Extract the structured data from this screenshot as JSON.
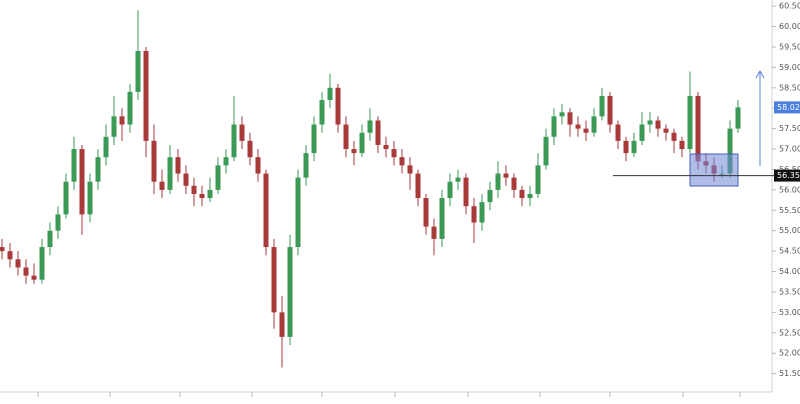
{
  "chart_data": {
    "type": "candlestick",
    "up_color": "#3c9a57",
    "down_color": "#a93a3a",
    "ylim": [
      51.05,
      60.65
    ],
    "yticks": [
      {
        "value": 51.5,
        "label": "51.50"
      },
      {
        "value": 52,
        "label": "52.00"
      },
      {
        "value": 52.5,
        "label": "52.50"
      },
      {
        "value": 53,
        "label": "53.00"
      },
      {
        "value": 53.5,
        "label": "53.50"
      },
      {
        "value": 54,
        "label": "54.00"
      },
      {
        "value": 54.5,
        "label": "54.50"
      },
      {
        "value": 55,
        "label": "55.00"
      },
      {
        "value": 55.5,
        "label": "55.50"
      },
      {
        "value": 56,
        "label": "56.00"
      },
      {
        "value": 56.5,
        "label": "56.50"
      },
      {
        "value": 57,
        "label": "57.00"
      },
      {
        "value": 57.5,
        "label": "57.50"
      },
      {
        "value": 58,
        "label": "58.00"
      },
      {
        "value": 58.5,
        "label": "58.50"
      },
      {
        "value": 59,
        "label": "59.00"
      },
      {
        "value": 59.5,
        "label": "59.50"
      },
      {
        "value": 60,
        "label": "60.00"
      },
      {
        "value": 60.5,
        "label": "60.50"
      }
    ],
    "last_price": 58.02,
    "horizontal_line": 56.35,
    "ohlc": [
      [
        54.6,
        54.8,
        54.3,
        54.5
      ],
      [
        54.5,
        54.7,
        54.1,
        54.3
      ],
      [
        54.3,
        54.5,
        53.9,
        54.1
      ],
      [
        54.1,
        54.3,
        53.7,
        53.9
      ],
      [
        53.9,
        54.2,
        53.7,
        53.8
      ],
      [
        53.8,
        54.8,
        53.7,
        54.6
      ],
      [
        54.6,
        55.2,
        54.4,
        55.0
      ],
      [
        55.0,
        55.6,
        54.8,
        55.4
      ],
      [
        55.4,
        56.4,
        55.3,
        56.2
      ],
      [
        56.2,
        57.3,
        56.0,
        57.0
      ],
      [
        57.0,
        57.1,
        54.9,
        55.4
      ],
      [
        55.4,
        56.4,
        55.2,
        56.2
      ],
      [
        56.2,
        57.0,
        56.0,
        56.8
      ],
      [
        56.8,
        57.6,
        56.6,
        57.3
      ],
      [
        57.3,
        58.3,
        57.1,
        57.8
      ],
      [
        57.8,
        58.0,
        57.2,
        57.6
      ],
      [
        57.6,
        58.6,
        57.4,
        58.4
      ],
      [
        58.4,
        60.4,
        58.2,
        59.4
      ],
      [
        59.4,
        59.5,
        56.8,
        57.2
      ],
      [
        57.2,
        57.6,
        55.9,
        56.2
      ],
      [
        56.2,
        56.5,
        55.8,
        56.0
      ],
      [
        56.0,
        57.1,
        55.9,
        56.8
      ],
      [
        56.8,
        57.0,
        56.2,
        56.4
      ],
      [
        56.4,
        56.6,
        55.9,
        56.1
      ],
      [
        56.1,
        56.3,
        55.6,
        55.9
      ],
      [
        55.9,
        56.1,
        55.6,
        55.8
      ],
      [
        55.8,
        56.3,
        55.7,
        56.0
      ],
      [
        56.0,
        56.8,
        55.9,
        56.6
      ],
      [
        56.6,
        57.0,
        56.4,
        56.8
      ],
      [
        56.8,
        58.3,
        56.7,
        57.6
      ],
      [
        57.6,
        57.8,
        57.0,
        57.2
      ],
      [
        57.2,
        57.4,
        56.6,
        56.8
      ],
      [
        56.8,
        57.0,
        56.2,
        56.4
      ],
      [
        56.4,
        56.5,
        54.4,
        54.6
      ],
      [
        54.6,
        54.8,
        52.6,
        53.0
      ],
      [
        53.0,
        53.4,
        51.65,
        52.4
      ],
      [
        52.4,
        54.9,
        52.2,
        54.6
      ],
      [
        54.6,
        56.5,
        54.4,
        56.3
      ],
      [
        56.3,
        57.1,
        56.1,
        56.9
      ],
      [
        56.9,
        57.8,
        56.7,
        57.6
      ],
      [
        57.6,
        58.4,
        57.4,
        58.2
      ],
      [
        58.2,
        58.85,
        58.0,
        58.5
      ],
      [
        58.5,
        58.6,
        57.4,
        57.6
      ],
      [
        57.6,
        57.8,
        56.8,
        57.0
      ],
      [
        57.0,
        57.2,
        56.6,
        56.9
      ],
      [
        56.9,
        57.6,
        56.8,
        57.4
      ],
      [
        57.4,
        58.0,
        57.2,
        57.7
      ],
      [
        57.7,
        57.8,
        56.9,
        57.1
      ],
      [
        57.1,
        57.3,
        56.8,
        57.0
      ],
      [
        57.0,
        57.2,
        56.6,
        56.8
      ],
      [
        56.8,
        57.0,
        56.4,
        56.6
      ],
      [
        56.6,
        56.8,
        56.0,
        56.4
      ],
      [
        56.4,
        56.5,
        55.6,
        55.8
      ],
      [
        55.8,
        55.9,
        54.9,
        55.1
      ],
      [
        55.1,
        55.3,
        54.4,
        54.8
      ],
      [
        54.8,
        56.0,
        54.6,
        55.8
      ],
      [
        55.8,
        56.4,
        55.6,
        56.2
      ],
      [
        56.2,
        56.5,
        56.0,
        56.3
      ],
      [
        56.3,
        56.4,
        55.4,
        55.6
      ],
      [
        55.6,
        55.8,
        54.7,
        55.2
      ],
      [
        55.2,
        55.9,
        55.0,
        55.7
      ],
      [
        55.7,
        56.2,
        55.5,
        56.0
      ],
      [
        56.0,
        56.7,
        55.8,
        56.4
      ],
      [
        56.4,
        56.6,
        56.1,
        56.3
      ],
      [
        56.3,
        56.4,
        55.8,
        56.0
      ],
      [
        56.0,
        56.1,
        55.6,
        55.8
      ],
      [
        55.8,
        56.1,
        55.6,
        55.9
      ],
      [
        55.9,
        56.9,
        55.8,
        56.6
      ],
      [
        56.6,
        57.5,
        56.5,
        57.3
      ],
      [
        57.3,
        58.0,
        57.1,
        57.8
      ],
      [
        57.8,
        58.1,
        57.6,
        57.9
      ],
      [
        57.9,
        58.0,
        57.3,
        57.6
      ],
      [
        57.6,
        57.8,
        57.3,
        57.5
      ],
      [
        57.5,
        57.7,
        57.2,
        57.4
      ],
      [
        57.4,
        58.0,
        57.3,
        57.8
      ],
      [
        57.8,
        58.5,
        57.7,
        58.3
      ],
      [
        58.3,
        58.4,
        57.4,
        57.6
      ],
      [
        57.6,
        57.7,
        57.0,
        57.2
      ],
      [
        57.2,
        57.3,
        56.7,
        56.9
      ],
      [
        56.9,
        57.4,
        56.8,
        57.2
      ],
      [
        57.2,
        57.9,
        57.1,
        57.6
      ],
      [
        57.6,
        57.9,
        57.4,
        57.7
      ],
      [
        57.7,
        57.8,
        57.3,
        57.5
      ],
      [
        57.5,
        57.6,
        57.2,
        57.4
      ],
      [
        57.4,
        57.5,
        56.9,
        57.2
      ],
      [
        57.2,
        57.3,
        56.8,
        57.0
      ],
      [
        57.0,
        58.9,
        56.9,
        58.3
      ],
      [
        58.3,
        58.4,
        56.5,
        56.7
      ],
      [
        56.7,
        56.9,
        56.4,
        56.6
      ],
      [
        56.6,
        56.8,
        56.2,
        56.4
      ],
      [
        56.4,
        56.6,
        56.3,
        56.4
      ],
      [
        56.4,
        57.7,
        56.3,
        57.5
      ],
      [
        57.5,
        58.2,
        57.4,
        58.02
      ]
    ]
  }
}
